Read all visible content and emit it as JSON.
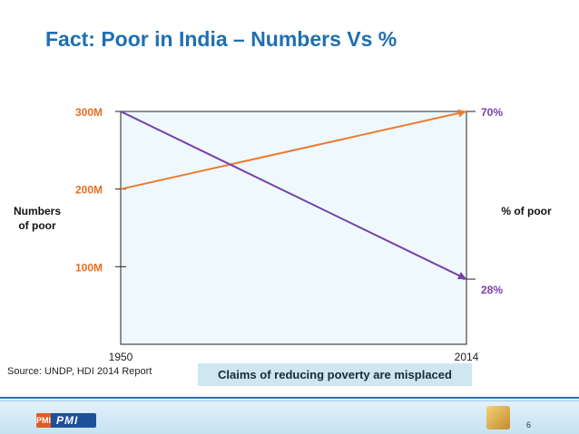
{
  "slide": {
    "title": "Fact: Poor in India – Numbers Vs %",
    "source": "Source: UNDP, HDI 2014 Report",
    "claims": "Claims of reducing poverty are misplaced",
    "page_number": "6",
    "logo_text": "PMI",
    "logo_mark": "PMI"
  },
  "chart_data": {
    "type": "line",
    "x": [
      "1950",
      "2014"
    ],
    "left_axis": {
      "label_lines": [
        "Numbers",
        "of poor"
      ],
      "ticks": [
        {
          "label": "300M",
          "value": 300
        },
        {
          "label": "200M",
          "value": 200
        },
        {
          "label": "100M",
          "value": 100
        }
      ],
      "range": [
        0,
        300
      ]
    },
    "right_axis": {
      "label": "% of poor",
      "range": [
        0,
        100
      ]
    },
    "series": [
      {
        "id": "numbers",
        "axis": "left",
        "color": "#ee7a30",
        "values": [
          200,
          300
        ],
        "end_label": ""
      },
      {
        "id": "percent",
        "axis": "right",
        "color": "#7a3fa8",
        "values": [
          100,
          28
        ],
        "end_label": "28%"
      }
    ],
    "right_labels": [
      {
        "label": "70%",
        "color": "#7a3fa8",
        "value_axis": "left",
        "value": 300
      },
      {
        "label": "28%",
        "color": "#7a3fa8",
        "value_axis": "right",
        "value": 28
      }
    ],
    "colors": {
      "tick_label": "#e56f1e",
      "plot_bg": "#eef8fd",
      "axis": "#222222"
    },
    "grid": false,
    "legend": "none"
  }
}
